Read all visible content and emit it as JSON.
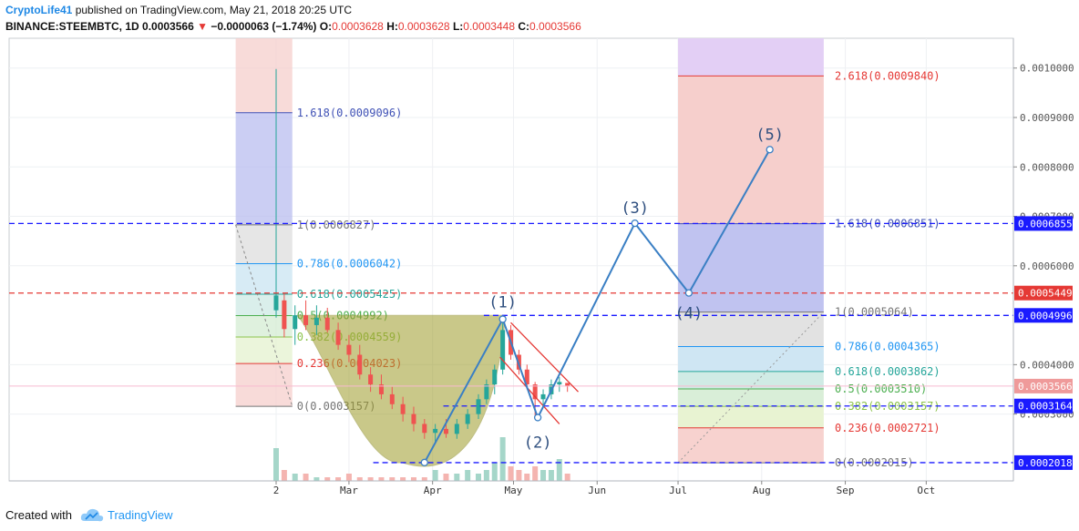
{
  "header": {
    "author": "CryptoLife41",
    "published_text": " published on TradingView.com, May 21, 2018 20:25 UTC",
    "symbol": "BINANCE:STEEMBTC, 1D",
    "last_price": "0.0003566",
    "change_arrow": "▼",
    "change": "−0.0000063 (−1.74%)",
    "o_label": "O:",
    "o_value": "0.0003628",
    "h_label": "H:",
    "h_value": "0.0003628",
    "l_label": "L:",
    "l_value": "0.0003448",
    "c_label": "C:",
    "c_value": "0.0003566"
  },
  "footer": {
    "created_with": "Created with",
    "brand": "TradingView"
  },
  "chart_data": {
    "type": "candlestick",
    "symbol": "BINANCE:STEEMBTC",
    "timeframe": "1D",
    "x_tick_labels": [
      "2",
      "Mar",
      "Apr",
      "May",
      "Jun",
      "Jul",
      "Aug",
      "Sep",
      "Oct"
    ],
    "x_tick_dates": [
      "2018-02-02",
      "2018-03-01",
      "2018-04-01",
      "2018-05-01",
      "2018-06-01",
      "2018-07-01",
      "2018-08-01",
      "2018-09-01",
      "2018-10-01"
    ],
    "y_tick_labels": [
      "0.0010000",
      "0.0009000",
      "0.0008000",
      "0.0007000",
      "0.0006000",
      "0.0004000",
      "0.0003000"
    ],
    "y_ticks": [
      0.001,
      0.0009,
      0.0008,
      0.0007,
      0.0006,
      0.0004,
      0.0003
    ],
    "ylim": [
      0.0001648,
      0.0010603
    ],
    "price_tags": [
      {
        "label": "0.0006855",
        "value": 0.0006855,
        "color": "#1a1aff"
      },
      {
        "label": "0.0005449",
        "value": 0.0005449,
        "color": "#e53935"
      },
      {
        "label": "0.0004996",
        "value": 0.0004996,
        "color": "#1a1aff"
      },
      {
        "label": "0.0003566",
        "value": 0.0003566,
        "color": "#ef9a9a"
      },
      {
        "label": "0.0003164",
        "value": 0.0003164,
        "color": "#1a1aff"
      },
      {
        "label": "0.0002018",
        "value": 0.0002018,
        "color": "#1a1aff"
      }
    ],
    "horizontal_lines": [
      {
        "value": 0.0006855,
        "color": "#1a1aff",
        "style": "dashed"
      },
      {
        "value": 0.0005449,
        "color": "#e53935",
        "style": "dashed"
      },
      {
        "value": 0.0004996,
        "color": "#1a1aff",
        "style": "dashed",
        "x_start": "2018-04-20"
      },
      {
        "value": 0.0003164,
        "color": "#1a1aff",
        "style": "dashed",
        "x_start": "2018-04-05"
      },
      {
        "value": 0.0002018,
        "color": "#1a1aff",
        "style": "dashed",
        "x_start": "2018-03-10"
      }
    ],
    "fib_left": {
      "x_start": "2018-01-18",
      "x_end": "2018-02-08",
      "levels": [
        {
          "ratio": "1.618",
          "price": "0.0009096",
          "value": 0.0009096,
          "color": "#3f51b5"
        },
        {
          "ratio": "1",
          "price": "0.0006827",
          "value": 0.0006827,
          "color": "#757575"
        },
        {
          "ratio": "0.786",
          "price": "0.0006042",
          "value": 0.0006042,
          "color": "#2196f3"
        },
        {
          "ratio": "0.618",
          "price": "0.0005425",
          "value": 0.0005425,
          "color": "#26a69a"
        },
        {
          "ratio": "0.5",
          "price": "0.0004992",
          "value": 0.0004992,
          "color": "#4caf50"
        },
        {
          "ratio": "0.382",
          "price": "0.0004559",
          "value": 0.0004559,
          "color": "#8bc34a"
        },
        {
          "ratio": "0.236",
          "price": "0.0004023",
          "value": 0.0004023,
          "color": "#e53935"
        },
        {
          "ratio": "0",
          "price": "0.0003157",
          "value": 0.0003157,
          "color": "#757575"
        }
      ]
    },
    "fib_ext": {
      "x_start": "2018-07-01",
      "x_end": "2018-08-24",
      "levels": [
        {
          "ratio": "2.618",
          "price": "0.0009840",
          "value": 0.000984,
          "color": "#e53935"
        },
        {
          "ratio": "1.618",
          "price": "0.0006851",
          "value": 0.0006851,
          "color": "#3f51b5"
        }
      ]
    },
    "fib_right": {
      "x_start": "2018-07-01",
      "x_end": "2018-08-24",
      "levels": [
        {
          "ratio": "1",
          "price": "0.0005064",
          "value": 0.0005064,
          "color": "#757575"
        },
        {
          "ratio": "0.786",
          "price": "0.0004365",
          "value": 0.0004365,
          "color": "#2196f3"
        },
        {
          "ratio": "0.618",
          "price": "0.0003862",
          "value": 0.0003862,
          "color": "#26a69a"
        },
        {
          "ratio": "0.5",
          "price": "0.0003510",
          "value": 0.000351,
          "color": "#4caf50"
        },
        {
          "ratio": "0.382",
          "price": "0.0003157",
          "value": 0.0003157,
          "color": "#8bc34a"
        },
        {
          "ratio": "0.236",
          "price": "0.0002721",
          "value": 0.0002721,
          "color": "#e53935"
        },
        {
          "ratio": "0",
          "price": "0.0002015",
          "value": 0.0002015,
          "color": "#757575"
        }
      ]
    },
    "wave_labels": [
      {
        "label": "(1)",
        "date": "2018-04-27",
        "value": 0.000492
      },
      {
        "label": "(2)",
        "date": "2018-05-10",
        "value": 0.000293
      },
      {
        "label": "(3)",
        "date": "2018-06-15",
        "value": 0.000686
      },
      {
        "label": "(4)",
        "date": "2018-07-05",
        "value": 0.000545
      },
      {
        "label": "(5)",
        "date": "2018-08-04",
        "value": 0.000835
      }
    ],
    "projection_path": [
      {
        "date": "2018-04-27",
        "value": 0.000492
      },
      {
        "date": "2018-05-10",
        "value": 0.000293
      },
      {
        "date": "2018-06-15",
        "value": 0.000686
      },
      {
        "date": "2018-07-05",
        "value": 0.000545
      },
      {
        "date": "2018-08-04",
        "value": 0.000835
      }
    ],
    "candles": [
      {
        "date": "2018-02-02",
        "open": 0.00051,
        "high": 0.000998,
        "low": 0.000495,
        "close": 0.00054
      },
      {
        "date": "2018-02-05",
        "open": 0.00053,
        "high": 0.000545,
        "low": 0.000455,
        "close": 0.000472
      },
      {
        "date": "2018-02-09",
        "open": 0.000472,
        "high": 0.00052,
        "low": 0.00044,
        "close": 0.0005
      },
      {
        "date": "2018-02-13",
        "open": 0.0005,
        "high": 0.00053,
        "low": 0.00047,
        "close": 0.00048
      },
      {
        "date": "2018-02-17",
        "open": 0.00048,
        "high": 0.00052,
        "low": 0.00046,
        "close": 0.000495
      },
      {
        "date": "2018-02-21",
        "open": 0.000495,
        "high": 0.000515,
        "low": 0.000465,
        "close": 0.00047
      },
      {
        "date": "2018-02-25",
        "open": 0.00047,
        "high": 0.000485,
        "low": 0.00043,
        "close": 0.00044
      },
      {
        "date": "2018-03-01",
        "open": 0.00044,
        "high": 0.00046,
        "low": 0.000405,
        "close": 0.00042
      },
      {
        "date": "2018-03-05",
        "open": 0.00042,
        "high": 0.00044,
        "low": 0.00037,
        "close": 0.00038
      },
      {
        "date": "2018-03-09",
        "open": 0.00038,
        "high": 0.000395,
        "low": 0.000345,
        "close": 0.00036
      },
      {
        "date": "2018-03-13",
        "open": 0.00036,
        "high": 0.00038,
        "low": 0.00033,
        "close": 0.00034
      },
      {
        "date": "2018-03-17",
        "open": 0.00034,
        "high": 0.000355,
        "low": 0.00031,
        "close": 0.00032
      },
      {
        "date": "2018-03-21",
        "open": 0.00032,
        "high": 0.000335,
        "low": 0.000285,
        "close": 0.0003
      },
      {
        "date": "2018-03-25",
        "open": 0.0003,
        "high": 0.000315,
        "low": 0.000265,
        "close": 0.00028
      },
      {
        "date": "2018-03-29",
        "open": 0.00028,
        "high": 0.00029,
        "low": 0.00025,
        "close": 0.000262
      },
      {
        "date": "2018-04-02",
        "open": 0.000262,
        "high": 0.00028,
        "low": 0.00024,
        "close": 0.00027
      },
      {
        "date": "2018-04-06",
        "open": 0.00027,
        "high": 0.00029,
        "low": 0.000252,
        "close": 0.00026
      },
      {
        "date": "2018-04-10",
        "open": 0.00026,
        "high": 0.00029,
        "low": 0.00025,
        "close": 0.00028
      },
      {
        "date": "2018-04-14",
        "open": 0.00028,
        "high": 0.00031,
        "low": 0.00027,
        "close": 0.0003
      },
      {
        "date": "2018-04-18",
        "open": 0.0003,
        "high": 0.00034,
        "low": 0.00029,
        "close": 0.00033
      },
      {
        "date": "2018-04-21",
        "open": 0.00033,
        "high": 0.00037,
        "low": 0.00032,
        "close": 0.00036
      },
      {
        "date": "2018-04-24",
        "open": 0.00036,
        "high": 0.0004,
        "low": 0.00034,
        "close": 0.00039
      },
      {
        "date": "2018-04-27",
        "open": 0.00039,
        "high": 0.000492,
        "low": 0.00038,
        "close": 0.00047
      },
      {
        "date": "2018-04-30",
        "open": 0.00047,
        "high": 0.00048,
        "low": 0.00041,
        "close": 0.00042
      },
      {
        "date": "2018-05-03",
        "open": 0.00042,
        "high": 0.00043,
        "low": 0.00038,
        "close": 0.00039
      },
      {
        "date": "2018-05-06",
        "open": 0.00039,
        "high": 0.0004,
        "low": 0.00035,
        "close": 0.00036
      },
      {
        "date": "2018-05-09",
        "open": 0.00036,
        "high": 0.000365,
        "low": 0.000293,
        "close": 0.00033
      },
      {
        "date": "2018-05-12",
        "open": 0.00033,
        "high": 0.00035,
        "low": 0.000315,
        "close": 0.00034
      },
      {
        "date": "2018-05-15",
        "open": 0.00034,
        "high": 0.00037,
        "low": 0.00033,
        "close": 0.00036
      },
      {
        "date": "2018-05-18",
        "open": 0.00036,
        "high": 0.000375,
        "low": 0.000345,
        "close": 0.000365
      },
      {
        "date": "2018-05-21",
        "open": 0.000363,
        "high": 0.000363,
        "low": 0.000345,
        "close": 0.0003566
      }
    ],
    "volumes": [
      {
        "date": "2018-02-02",
        "value": 9
      },
      {
        "date": "2018-02-05",
        "value": 3
      },
      {
        "date": "2018-02-09",
        "value": 2
      },
      {
        "date": "2018-02-13",
        "value": 2
      },
      {
        "date": "2018-02-17",
        "value": 1
      },
      {
        "date": "2018-02-21",
        "value": 1
      },
      {
        "date": "2018-02-25",
        "value": 1
      },
      {
        "date": "2018-03-01",
        "value": 2
      },
      {
        "date": "2018-03-05",
        "value": 1
      },
      {
        "date": "2018-03-09",
        "value": 1
      },
      {
        "date": "2018-03-13",
        "value": 1
      },
      {
        "date": "2018-03-17",
        "value": 1
      },
      {
        "date": "2018-03-21",
        "value": 1
      },
      {
        "date": "2018-03-25",
        "value": 1
      },
      {
        "date": "2018-03-29",
        "value": 1
      },
      {
        "date": "2018-04-02",
        "value": 3
      },
      {
        "date": "2018-04-06",
        "value": 2
      },
      {
        "date": "2018-04-10",
        "value": 2
      },
      {
        "date": "2018-04-14",
        "value": 3
      },
      {
        "date": "2018-04-18",
        "value": 2
      },
      {
        "date": "2018-04-21",
        "value": 3
      },
      {
        "date": "2018-04-24",
        "value": 5
      },
      {
        "date": "2018-04-27",
        "value": 12
      },
      {
        "date": "2018-04-30",
        "value": 4
      },
      {
        "date": "2018-05-03",
        "value": 3
      },
      {
        "date": "2018-05-06",
        "value": 2
      },
      {
        "date": "2018-05-09",
        "value": 4
      },
      {
        "date": "2018-05-12",
        "value": 3
      },
      {
        "date": "2018-05-15",
        "value": 3
      },
      {
        "date": "2018-05-18",
        "value": 6
      },
      {
        "date": "2018-05-21",
        "value": 2
      }
    ],
    "colors": {
      "up": "#26a69a",
      "down": "#ef5350",
      "wave": "#3a7fc4",
      "channel": "#e53935",
      "cup_fill": "#9e9c2a",
      "grid": "#eef0f3"
    }
  }
}
